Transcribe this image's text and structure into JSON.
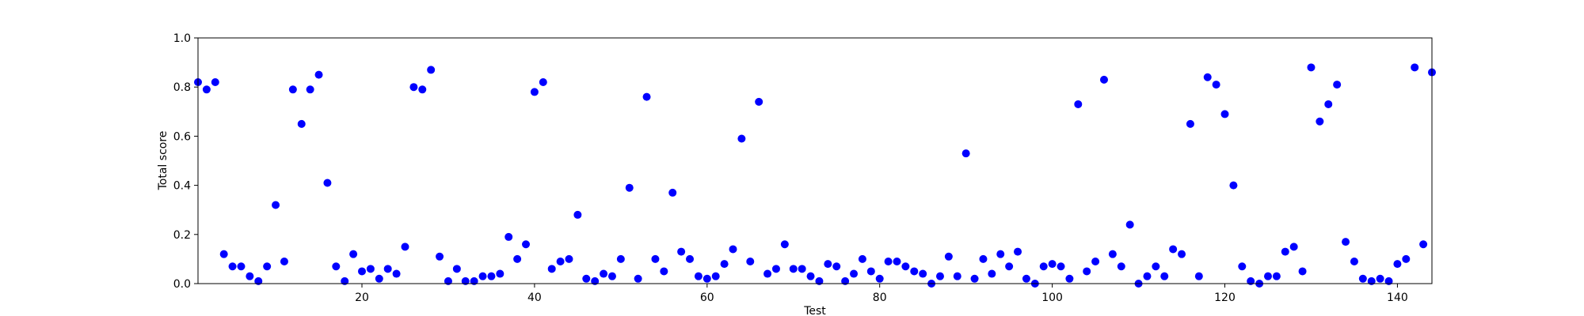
{
  "chart_data": {
    "type": "scatter",
    "title": "",
    "xlabel": "Test",
    "ylabel": "Total score",
    "xlim": [
      1,
      144
    ],
    "ylim": [
      0.0,
      1.0
    ],
    "xticks": [
      20,
      40,
      60,
      80,
      100,
      120,
      140
    ],
    "yticks": [
      "0.0",
      "0.2",
      "0.4",
      "0.6",
      "0.8",
      "1.0"
    ],
    "grid": false,
    "marker_color": "#0000ff",
    "series": [
      {
        "x": [
          1,
          2,
          3,
          4,
          5,
          6,
          7,
          8,
          9,
          10,
          11,
          12,
          13,
          14,
          15,
          16,
          17,
          18,
          19,
          20,
          21,
          22,
          23,
          24,
          25,
          26,
          27,
          28,
          29,
          30,
          31,
          32,
          33,
          34,
          35,
          36,
          37,
          38,
          39,
          40,
          41,
          42,
          43,
          44,
          45,
          46,
          47,
          48,
          49,
          50,
          51,
          52,
          53,
          54,
          55,
          56,
          57,
          58,
          59,
          60,
          61,
          62,
          63,
          64,
          65,
          66,
          67,
          68,
          69,
          70,
          71,
          72,
          73,
          74,
          75,
          76,
          77,
          78,
          79,
          80,
          81,
          82,
          83,
          84,
          85,
          86,
          87,
          88,
          89,
          90,
          91,
          92,
          93,
          94,
          95,
          96,
          97,
          98,
          99,
          100,
          101,
          102,
          103,
          104,
          105,
          106,
          107,
          108,
          109,
          110,
          111,
          112,
          113,
          114,
          115,
          116,
          117,
          118,
          119,
          120,
          121,
          122,
          123,
          124,
          125,
          126,
          127,
          128,
          129,
          130,
          131,
          132,
          133,
          134,
          135,
          136,
          137,
          138,
          139,
          140,
          141,
          142,
          143,
          144
        ],
        "y": [
          0.82,
          0.79,
          0.82,
          0.12,
          0.07,
          0.07,
          0.03,
          0.01,
          0.07,
          0.32,
          0.09,
          0.79,
          0.65,
          0.79,
          0.85,
          0.41,
          0.07,
          0.01,
          0.12,
          0.05,
          0.06,
          0.02,
          0.06,
          0.04,
          0.15,
          0.8,
          0.79,
          0.87,
          0.11,
          0.01,
          0.06,
          0.01,
          0.01,
          0.03,
          0.03,
          0.04,
          0.19,
          0.1,
          0.16,
          0.78,
          0.82,
          0.06,
          0.09,
          0.1,
          0.28,
          0.02,
          0.01,
          0.04,
          0.03,
          0.1,
          0.39,
          0.02,
          0.76,
          0.1,
          0.05,
          0.37,
          0.13,
          0.1,
          0.03,
          0.02,
          0.03,
          0.08,
          0.14,
          0.59,
          0.09,
          0.74,
          0.04,
          0.06,
          0.16,
          0.06,
          0.06,
          0.03,
          0.01,
          0.08,
          0.07,
          0.01,
          0.04,
          0.1,
          0.05,
          0.02,
          0.09,
          0.09,
          0.07,
          0.05,
          0.04,
          0.0,
          0.03,
          0.11,
          0.03,
          0.53,
          0.02,
          0.1,
          0.04,
          0.12,
          0.07,
          0.13,
          0.02,
          0.0,
          0.07,
          0.08,
          0.07,
          0.02,
          0.73,
          0.05,
          0.09,
          0.83,
          0.12,
          0.07,
          0.24,
          0.0,
          0.03,
          0.07,
          0.03,
          0.14,
          0.12,
          0.65,
          0.03,
          0.84,
          0.81,
          0.69,
          0.4,
          0.07,
          0.01,
          0.0,
          0.03,
          0.03,
          0.13,
          0.15,
          0.05,
          0.88,
          0.66,
          0.73,
          0.81,
          0.17,
          0.09,
          0.02,
          0.01,
          0.02,
          0.01,
          0.08,
          0.1,
          0.88,
          0.16,
          0.86
        ]
      }
    ]
  }
}
